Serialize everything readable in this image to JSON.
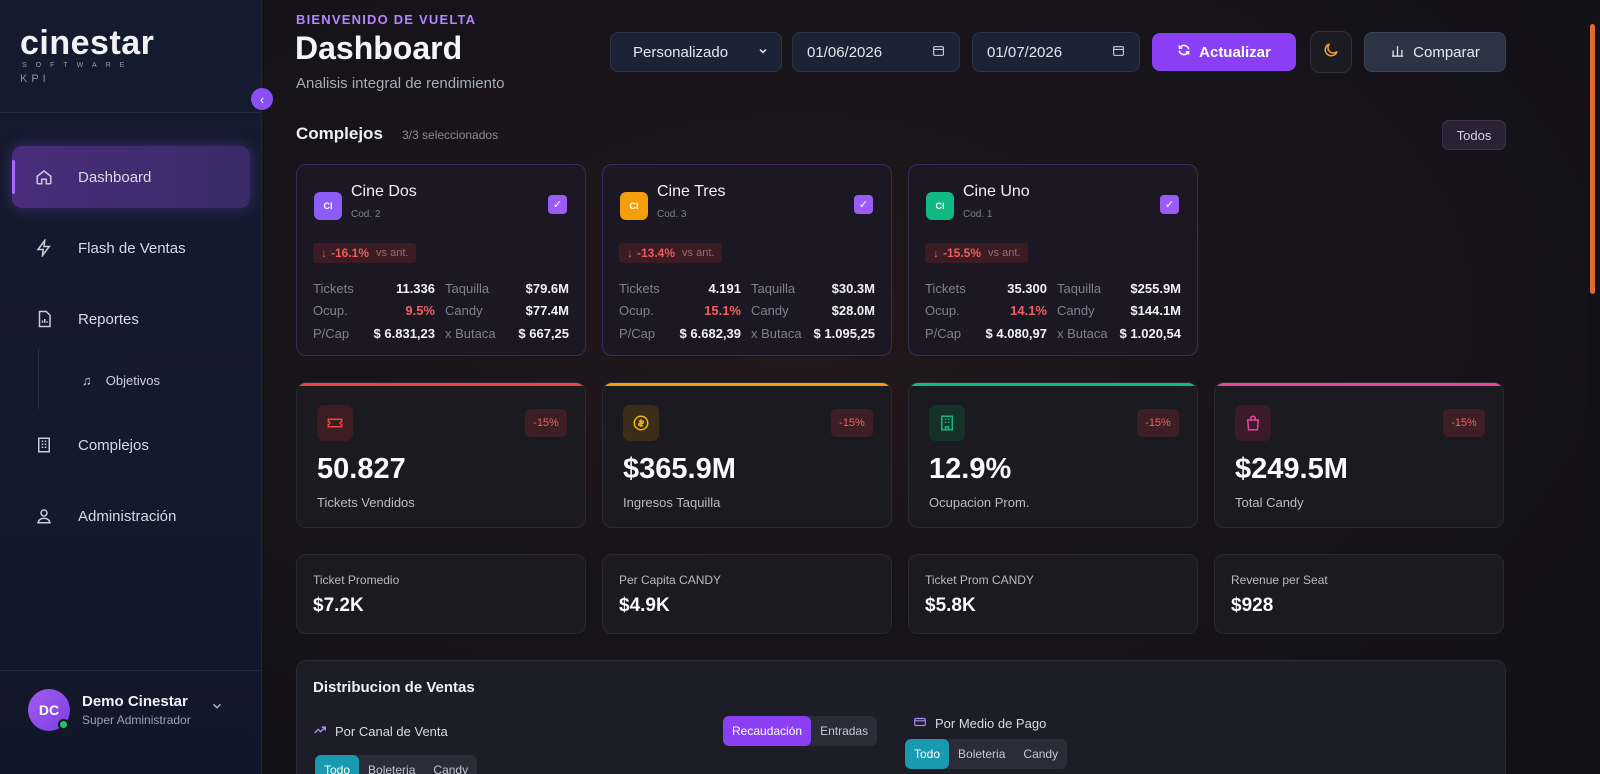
{
  "brand": {
    "name": "cinestar",
    "sub": "SOFTWARE",
    "product": "KPI"
  },
  "sidebar": {
    "items": [
      {
        "label": "Dashboard",
        "icon": "home-icon",
        "active": true
      },
      {
        "label": "Flash de Ventas",
        "icon": "lightning-icon"
      },
      {
        "label": "Reportes",
        "icon": "report-icon"
      },
      {
        "label": "Objetivos",
        "icon": "music-note-icon",
        "sub": true
      },
      {
        "label": "Complejos",
        "icon": "building-icon"
      },
      {
        "label": "Administración",
        "icon": "users-icon"
      }
    ],
    "user": {
      "initials": "DC",
      "name": "Demo Cinestar",
      "role": "Super Administrador",
      "status_color": "#22c55e"
    }
  },
  "header": {
    "welcome": "BIENVENIDO DE VUELTA",
    "title": "Dashboard",
    "subtitle": "Analisis integral de rendimiento",
    "period": "Personalizado",
    "date_from": "01/06/2026",
    "date_to": "01/07/2026",
    "refresh_label": "Actualizar",
    "compare_label": "Comparar",
    "accent": "#8a3ff5"
  },
  "complexes": {
    "title": "Complejos",
    "count": "3/3 seleccionados",
    "all_label": "Todos",
    "cards": [
      {
        "badge": "CI",
        "badge_color": "#8b5cf6",
        "name": "Cine Dos",
        "code": "Cod. 2",
        "delta": "-16.1%",
        "vs": "vs ant.",
        "tickets": "11.336",
        "taquilla": "$79.6M",
        "ocup": "9.5%",
        "candy": "$77.4M",
        "pcap": "$ 6.831,23",
        "xbutaca": "$ 667,25"
      },
      {
        "badge": "CI",
        "badge_color": "#f59e0b",
        "name": "Cine Tres",
        "code": "Cod. 3",
        "delta": "-13.4%",
        "vs": "vs ant.",
        "tickets": "4.191",
        "taquilla": "$30.3M",
        "ocup": "15.1%",
        "candy": "$28.0M",
        "pcap": "$ 6.682,39",
        "xbutaca": "$ 1.095,25"
      },
      {
        "badge": "CI",
        "badge_color": "#10b981",
        "name": "Cine Uno",
        "code": "Cod. 1",
        "delta": "-15.5%",
        "vs": "vs ant.",
        "tickets": "35.300",
        "taquilla": "$255.9M",
        "ocup": "14.1%",
        "candy": "$144.1M",
        "pcap": "$ 4.080,97",
        "xbutaca": "$ 1.020,54"
      }
    ],
    "labels": {
      "tickets": "Tickets",
      "taquilla": "Taquilla",
      "ocup": "Ocup.",
      "candy": "Candy",
      "pcap": "P/Cap",
      "xbutaca": "x Butaca"
    }
  },
  "kpis": [
    {
      "value": "50.827",
      "label": "Tickets Vendidos",
      "delta": "-15%",
      "color": "#ef4444",
      "icon": "ticket-icon"
    },
    {
      "value": "$365.9M",
      "label": "Ingresos Taquilla",
      "delta": "-15%",
      "color": "#f59e0b",
      "icon": "coin-icon"
    },
    {
      "value": "12.9%",
      "label": "Ocupacion Prom.",
      "delta": "-15%",
      "color": "#10b981",
      "icon": "building-icon"
    },
    {
      "value": "$249.5M",
      "label": "Total Candy",
      "delta": "-15%",
      "color": "#ec4899",
      "icon": "bag-icon"
    }
  ],
  "mini": [
    {
      "label": "Ticket Promedio",
      "value": "$7.2K"
    },
    {
      "label": "Per Capita CANDY",
      "value": "$4.9K"
    },
    {
      "label": "Ticket Prom CANDY",
      "value": "$5.8K"
    },
    {
      "label": "Revenue per Seat",
      "value": "$928"
    }
  ],
  "distribution": {
    "title": "Distribucion de Ventas",
    "canal_label": "Por Canal de Venta",
    "medio_label": "Por Medio de Pago",
    "toggle": [
      "Recaudación",
      "Entradas"
    ],
    "filters_left": [
      "Todo",
      "Boleteria",
      "Candy"
    ],
    "filters_right": [
      "Todo",
      "Boleteria",
      "Candy"
    ]
  }
}
